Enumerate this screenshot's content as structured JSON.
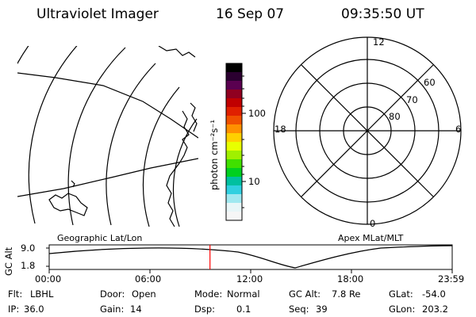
{
  "header": {
    "title": "Ultraviolet Imager",
    "date": "16 Sep 07",
    "time": "09:35:50 UT"
  },
  "left_panel": {
    "caption": "Geographic Lat/Lon"
  },
  "colorbar": {
    "unit_label": "photon cm⁻²s⁻¹",
    "scale": "log",
    "ticks": [
      "100",
      "10"
    ],
    "colors": [
      "#000000",
      "#2b0030",
      "#5a0050",
      "#900020",
      "#c00000",
      "#e02000",
      "#f05000",
      "#ff9000",
      "#ffd000",
      "#e8ff00",
      "#a0f000",
      "#40e000",
      "#00d020",
      "#00c0a0",
      "#30d0e0",
      "#a0e8f0",
      "#e8f6f8",
      "#f6f6f6"
    ]
  },
  "right_panel": {
    "caption": "Apex MLat/MLT",
    "mlt_labels": {
      "top": "12",
      "right": "6",
      "bottom": "0",
      "left": "18"
    },
    "mlat_labels": [
      "60",
      "70",
      "80"
    ]
  },
  "alt_plot": {
    "ylabel": "GC Alt",
    "yticks": [
      "9.0",
      "1.8"
    ],
    "xticks": [
      "00:00",
      "06:00",
      "12:00",
      "18:00",
      "23:59"
    ],
    "current_time_fraction": 0.399,
    "marker_color": "#ff0000"
  },
  "info": {
    "row1": [
      {
        "label": "Flt:",
        "value": "LBHL"
      },
      {
        "label": "Door:",
        "value": "Open"
      },
      {
        "label": "Mode:",
        "value": "Normal"
      },
      {
        "label": "GC Alt:",
        "value": "7.8 Re"
      },
      {
        "label": "GLat:",
        "value": "-54.0"
      }
    ],
    "row2": [
      {
        "label": "IP:",
        "value": "36.0"
      },
      {
        "label": "Gain:",
        "value": "14"
      },
      {
        "label": "Dsp:",
        "value": "0.1"
      },
      {
        "label": "Seq:",
        "value": "39"
      },
      {
        "label": "GLon:",
        "value": "203.2"
      }
    ]
  }
}
